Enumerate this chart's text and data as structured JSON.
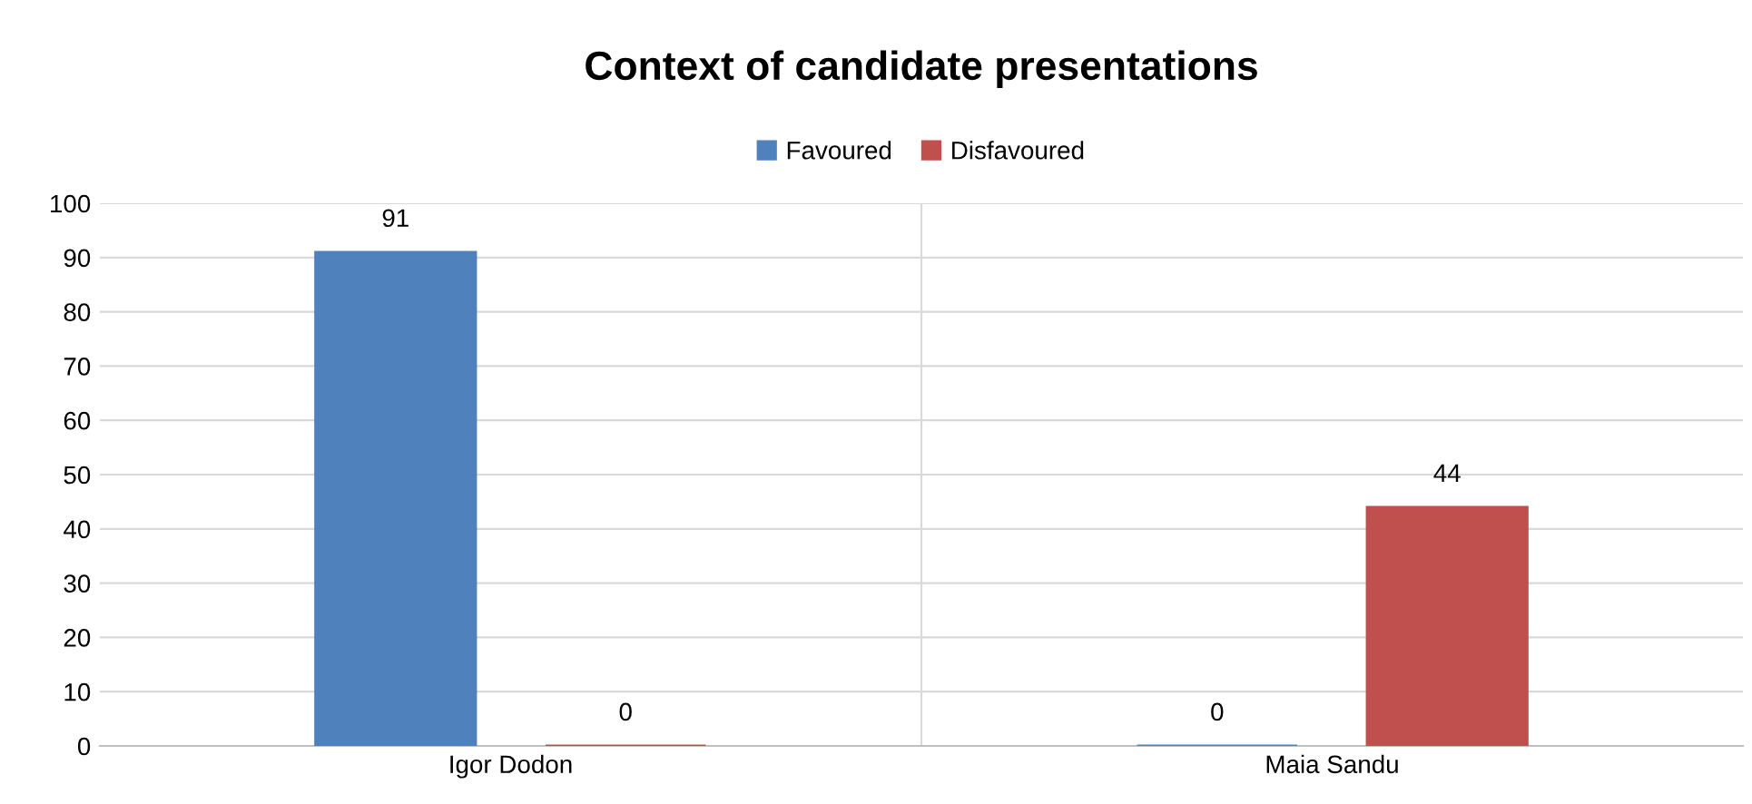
{
  "chart_data": {
    "type": "bar",
    "title": "Context of candidate presentations",
    "categories": [
      "Igor Dodon",
      "Maia Sandu"
    ],
    "series": [
      {
        "name": "Favoured",
        "color": "#4f81bd",
        "values": [
          91,
          0
        ]
      },
      {
        "name": "Disfavoured",
        "color": "#c0504d",
        "values": [
          0,
          44
        ]
      }
    ],
    "ylim": [
      0,
      100
    ],
    "yticks": [
      0,
      10,
      20,
      30,
      40,
      50,
      60,
      70,
      80,
      90,
      100
    ],
    "grid": "y",
    "legend": "top",
    "data_labels": true
  }
}
